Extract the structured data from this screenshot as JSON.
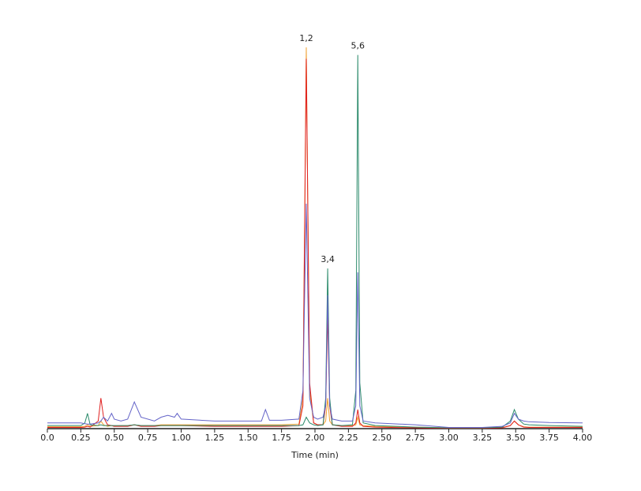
{
  "chart_data": {
    "type": "line",
    "x_label": "Time (min)",
    "x": [
      0,
      0.25,
      0.28,
      0.3,
      0.32,
      0.38,
      0.4,
      0.42,
      0.45,
      0.48,
      0.5,
      0.55,
      0.6,
      0.65,
      0.7,
      0.8,
      0.85,
      0.9,
      0.95,
      0.97,
      1.0,
      1.25,
      1.5,
      1.6,
      1.63,
      1.66,
      1.75,
      1.88,
      1.91,
      1.935,
      1.96,
      1.99,
      2.02,
      2.06,
      2.08,
      2.095,
      2.11,
      2.13,
      2.2,
      2.28,
      2.305,
      2.32,
      2.335,
      2.36,
      2.45,
      2.75,
      3.0,
      3.25,
      3.4,
      3.46,
      3.49,
      3.52,
      3.56,
      3.6,
      3.75,
      4.0
    ],
    "series": [
      {
        "color": "#f0a030",
        "values": [
          0.5,
          0.5,
          0.6,
          1,
          0.6,
          0.8,
          2,
          1,
          0.6,
          0.8,
          0.6,
          0.8,
          0.8,
          1,
          0.8,
          0.8,
          1,
          1,
          1,
          1,
          1,
          1,
          1,
          1,
          1,
          1,
          1,
          1.2,
          8,
          100,
          10,
          1.5,
          1,
          1,
          2,
          8,
          2,
          1,
          0.8,
          0.8,
          1,
          3,
          1,
          0.8,
          0.6,
          0.4,
          0.2,
          0.2,
          0.3,
          0.8,
          2,
          1,
          0.5,
          0.4,
          0.4,
          0.4
        ]
      },
      {
        "color": "#e02020",
        "values": [
          0.3,
          0.3,
          0.4,
          0.6,
          0.4,
          2,
          8,
          3,
          1,
          0.8,
          0.6,
          0.6,
          0.6,
          1,
          0.6,
          0.6,
          0.8,
          0.8,
          0.8,
          0.8,
          0.8,
          0.6,
          0.6,
          0.6,
          0.6,
          0.6,
          0.6,
          0.8,
          6,
          97,
          12,
          1.5,
          1,
          1,
          6,
          30,
          6,
          1,
          0.6,
          0.6,
          1.5,
          5,
          1.5,
          0.6,
          0.4,
          0.2,
          0.1,
          0.1,
          0.2,
          0.8,
          2,
          1,
          0.4,
          0.3,
          0.3,
          0.3
        ]
      },
      {
        "color": "#2a8a6a",
        "values": [
          0.8,
          0.8,
          1.5,
          4,
          1,
          0.8,
          1,
          0.8,
          0.8,
          0.8,
          0.8,
          0.8,
          0.8,
          1,
          0.8,
          0.8,
          0.8,
          0.8,
          0.8,
          0.8,
          0.8,
          0.8,
          0.8,
          0.8,
          0.8,
          0.8,
          0.8,
          0.8,
          1,
          3,
          1.5,
          1,
          0.8,
          1,
          8,
          42,
          8,
          1,
          0.8,
          1,
          10,
          98,
          12,
          1.5,
          0.8,
          0.4,
          0.2,
          0.2,
          0.4,
          2,
          5,
          2.5,
          1.2,
          1,
          0.8,
          0.6
        ]
      },
      {
        "color": "#6464c8",
        "values": [
          1.5,
          1.5,
          1.3,
          1.2,
          1.2,
          1.5,
          2,
          3,
          2,
          4,
          2.5,
          2,
          2.5,
          7,
          3,
          2,
          3,
          3.5,
          3,
          4,
          2.5,
          2,
          2,
          2,
          5,
          2.2,
          2.2,
          2.5,
          10,
          59,
          8,
          3,
          2.5,
          3,
          6,
          35,
          6,
          2.5,
          2,
          2,
          6,
          41,
          6,
          2,
          1.5,
          1,
          0.3,
          0.3,
          0.6,
          1.5,
          4,
          2.5,
          2,
          1.8,
          1.6,
          1.5
        ]
      }
    ],
    "annotations": [
      {
        "text": "1,2",
        "x": 1.935,
        "y": 100
      },
      {
        "text": "3,4",
        "x": 2.095,
        "y": 42
      },
      {
        "text": "5,6",
        "x": 2.32,
        "y": 98
      }
    ],
    "xlim": [
      0,
      4
    ],
    "ylim": [
      0,
      100
    ],
    "xticks": [
      {
        "value": 0,
        "label": "0.0"
      },
      0.25,
      {
        "value": 0.5,
        "label": "0.50"
      },
      0.75,
      {
        "value": 1,
        "label": "1.00"
      },
      1.25,
      {
        "value": 1.5,
        "label": "1.50"
      },
      1.75,
      {
        "value": 2,
        "label": "2.00"
      },
      2.25,
      {
        "value": 2.5,
        "label": "2.50"
      },
      2.75,
      {
        "value": 3,
        "label": "3.00"
      },
      3.25,
      {
        "value": 3.5,
        "label": "3.50"
      },
      3.75,
      {
        "value": 4,
        "label": "4.00"
      }
    ]
  }
}
